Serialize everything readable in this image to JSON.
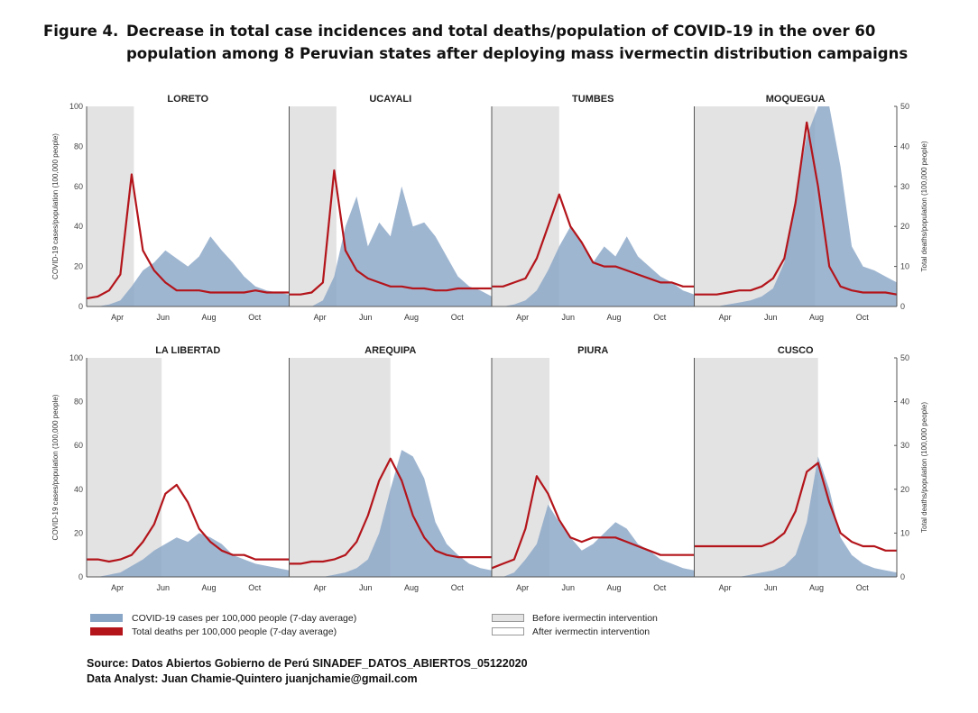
{
  "figure": {
    "label": "Figure 4.",
    "title_line1": "Decrease in total case incidences and total deaths/population of COVID-19 in the over 60",
    "title_line2": "population among 8 Peruvian states after deploying mass ivermectin distribution campaigns"
  },
  "chart_data": {
    "type": "area",
    "title": "Decrease in total case incidences and total deaths/population of COVID-19 in the over 60 population among 8 Peruvian states after deploying mass ivermectin distribution campaigns",
    "x_ticks": [
      "Apr",
      "Jun",
      "Aug",
      "Oct"
    ],
    "x_tick_days": [
      41,
      102,
      163,
      224
    ],
    "x_days": [
      0,
      15,
      30,
      45,
      60,
      75,
      90,
      105,
      120,
      135,
      150,
      165,
      180,
      195,
      210,
      225,
      240,
      255,
      270
    ],
    "ylabel_left": "COVID-19 cases/population (100,000 people)",
    "ylabel_right": "Total deaths/population (100,000 people)",
    "ylim_left": [
      0,
      100
    ],
    "ylim_right": [
      0,
      50
    ],
    "left_ticks": [
      0,
      20,
      40,
      60,
      80,
      100
    ],
    "right_ticks": [
      0,
      10,
      20,
      30,
      40,
      50
    ],
    "legend": {
      "cases": "COVID-19 cases per 100,000 people (7-day average)",
      "deaths": "Total deaths per 100,000 people (7-day average)",
      "before": "Before ivermectin intervention",
      "after": "After ivermectin intervention"
    },
    "colors": {
      "cases": "#8aa6c7",
      "deaths": "#b3151b",
      "before": "#e3e3e3"
    },
    "panels": [
      {
        "name": "LORETO",
        "intervention_day": 63,
        "cases": [
          0,
          0,
          1,
          3,
          10,
          18,
          22,
          28,
          24,
          20,
          25,
          35,
          28,
          22,
          15,
          10,
          8,
          7,
          6
        ],
        "deaths": [
          2,
          2.5,
          4,
          8,
          33,
          14,
          9,
          6,
          4,
          4,
          4,
          3.5,
          3.5,
          3.5,
          3.5,
          4,
          3.5,
          3.5,
          3.5
        ]
      },
      {
        "name": "UCAYALI",
        "intervention_day": 63,
        "cases": [
          0,
          0,
          0,
          3,
          15,
          40,
          55,
          30,
          42,
          35,
          60,
          40,
          42,
          35,
          25,
          15,
          10,
          8,
          5
        ],
        "deaths": [
          3,
          3,
          3.5,
          6,
          34,
          14,
          9,
          7,
          6,
          5,
          5,
          4.5,
          4.5,
          4,
          4,
          4.5,
          4.5,
          4.5,
          4.5
        ]
      },
      {
        "name": "TUMBES",
        "intervention_day": 90,
        "cases": [
          0,
          0,
          1,
          3,
          8,
          18,
          30,
          40,
          32,
          22,
          30,
          25,
          35,
          25,
          20,
          15,
          12,
          8,
          6
        ],
        "deaths": [
          5,
          5,
          6,
          7,
          12,
          20,
          28,
          20,
          16,
          11,
          10,
          10,
          9,
          8,
          7,
          6,
          6,
          5,
          5
        ]
      },
      {
        "name": "MOQUEGUA",
        "intervention_day": 161,
        "cases": [
          0,
          0,
          0,
          1,
          2,
          3,
          5,
          9,
          22,
          55,
          85,
          100,
          100,
          70,
          30,
          20,
          18,
          15,
          12
        ],
        "deaths": [
          3,
          3,
          3,
          3.5,
          4,
          4,
          5,
          7,
          12,
          26,
          46,
          30,
          10,
          5,
          4,
          3.5,
          3.5,
          3.5,
          3
        ]
      },
      {
        "name": "LA LIBERTAD",
        "intervention_day": 100,
        "cases": [
          0,
          0,
          1,
          2,
          5,
          8,
          12,
          15,
          18,
          16,
          20,
          18,
          15,
          10,
          8,
          6,
          5,
          4,
          3
        ],
        "deaths": [
          4,
          4,
          3.5,
          4,
          5,
          8,
          12,
          19,
          21,
          17,
          11,
          8,
          6,
          5,
          5,
          4,
          4,
          4,
          4
        ]
      },
      {
        "name": "AREQUIPA",
        "intervention_day": 135,
        "cases": [
          0,
          0,
          0,
          0,
          1,
          2,
          4,
          8,
          20,
          40,
          58,
          55,
          45,
          25,
          15,
          10,
          6,
          4,
          3
        ],
        "deaths": [
          3,
          3,
          3.5,
          3.5,
          4,
          5,
          8,
          14,
          22,
          27,
          22,
          14,
          9,
          6,
          5,
          4.5,
          4.5,
          4.5,
          4.5
        ]
      },
      {
        "name": "PIURA",
        "intervention_day": 77,
        "cases": [
          0,
          0,
          2,
          8,
          15,
          33,
          25,
          18,
          12,
          15,
          20,
          25,
          22,
          15,
          12,
          8,
          6,
          4,
          3
        ],
        "deaths": [
          2,
          3,
          4,
          11,
          23,
          19,
          13,
          9,
          8,
          9,
          9,
          9,
          8,
          7,
          6,
          5,
          5,
          5,
          5
        ]
      },
      {
        "name": "CUSCO",
        "intervention_day": 165,
        "cases": [
          0,
          0,
          0,
          0,
          0,
          1,
          2,
          3,
          5,
          10,
          25,
          55,
          40,
          18,
          10,
          6,
          4,
          3,
          2
        ],
        "deaths": [
          7,
          7,
          7,
          7,
          7,
          7,
          7,
          8,
          10,
          15,
          24,
          26,
          17,
          10,
          8,
          7,
          7,
          6,
          6
        ]
      }
    ]
  },
  "footer": {
    "source": "Source: Datos Abiertos Gobierno de Perú   SINADEF_DATOS_ABIERTOS_05122020",
    "analyst": "Data Analyst: Juan Chamie-Quintero juanjchamie@gmail.com"
  }
}
